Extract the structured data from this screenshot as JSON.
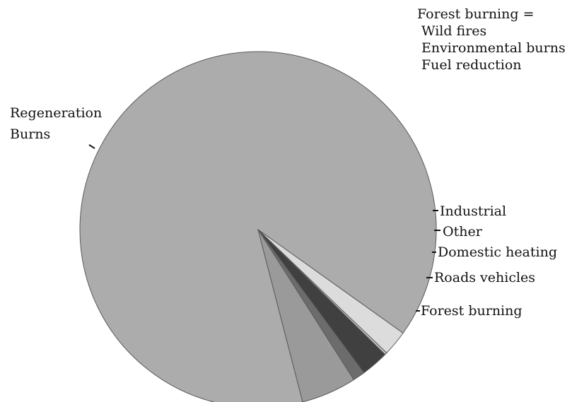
{
  "chart_data": {
    "type": "pie",
    "slices": [
      {
        "label": "Regeneration Burns",
        "value": 88.9,
        "color": "#acacac"
      },
      {
        "label": "Industrial",
        "value": 2.3,
        "color": "#dcdcdc"
      },
      {
        "label": "Other",
        "value": 0.2,
        "color": "#c6c6c6"
      },
      {
        "label": "Domestic heating",
        "value": 2.5,
        "color": "#404040"
      },
      {
        "label": "Roads vehicles",
        "value": 1.1,
        "color": "#6c6c6c"
      },
      {
        "label": "Forest burning",
        "value": 5.0,
        "color": "#9a9a9a"
      }
    ],
    "labels": {
      "regeneration_line1": "Regeneration",
      "regeneration_line2": "Burns",
      "industrial": "Industrial",
      "other": "Other",
      "domestic_heating": "Domestic heating",
      "roads_vehicles": "Roads vehicles",
      "forest_burning": "Forest burning"
    },
    "note": {
      "title": "Forest burning =",
      "items": [
        "Wild fires",
        "Environmental burns",
        "Fuel reduction"
      ]
    }
  }
}
